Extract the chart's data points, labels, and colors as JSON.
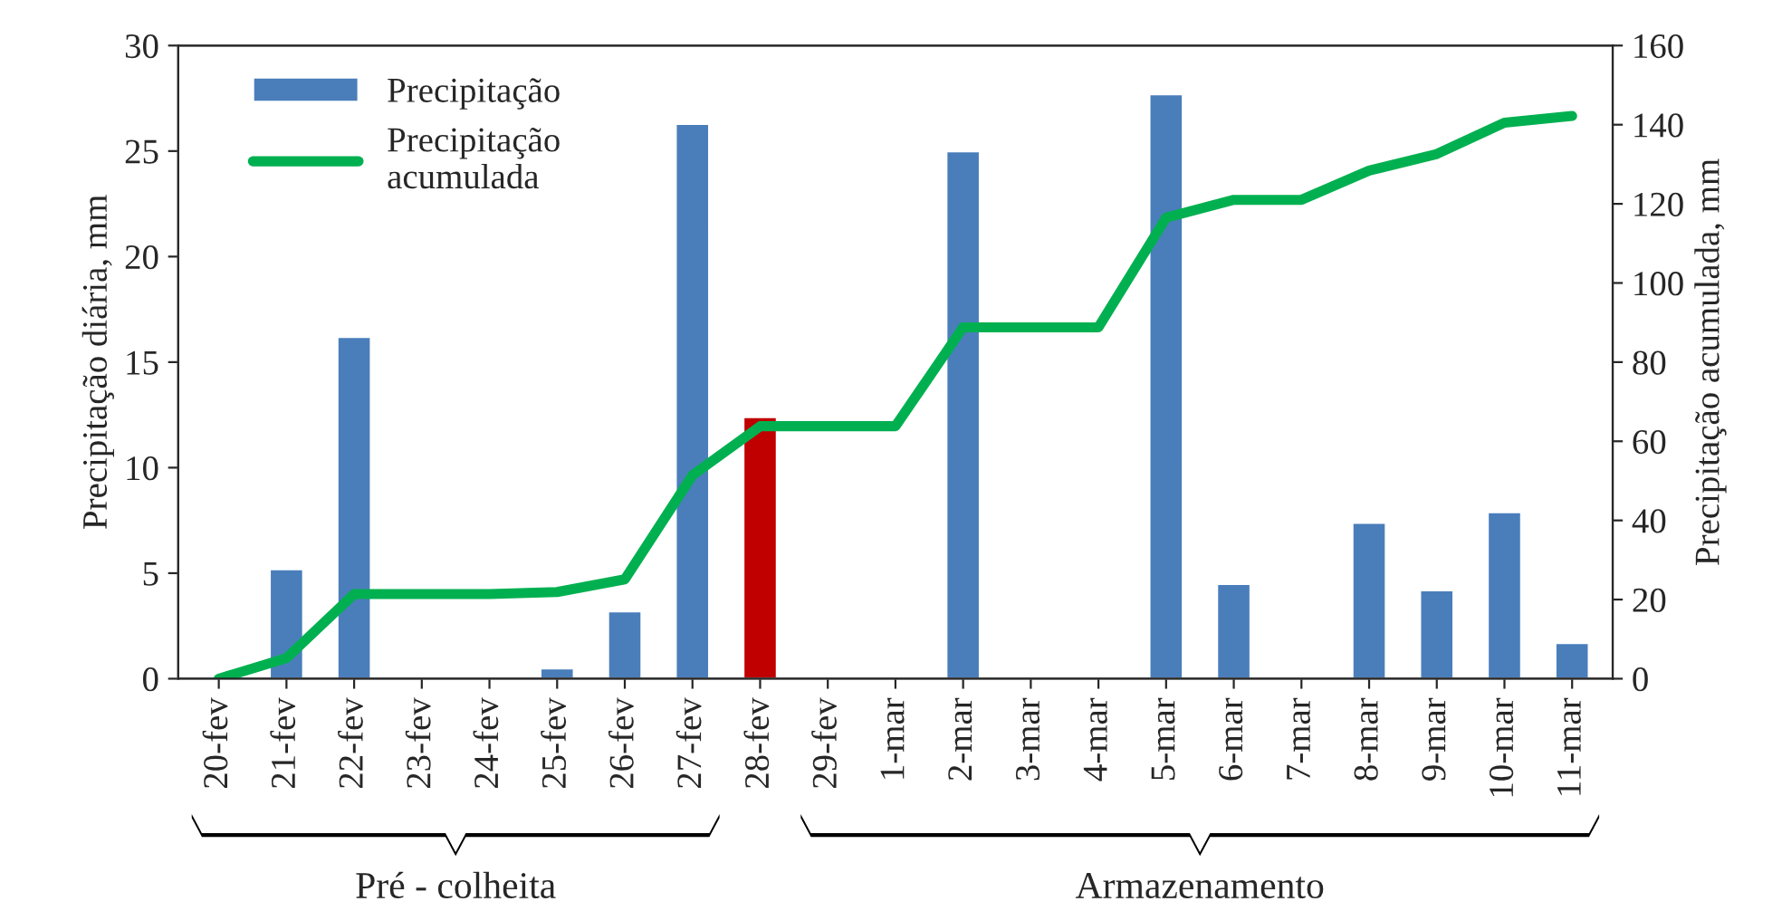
{
  "chart_data": {
    "type": "bar",
    "ylabel": "Precipitação diária, mm",
    "y2label": "Precipitação acumulada, mm",
    "categories": [
      "20-fev",
      "21-fev",
      "22-fev",
      "23-fev",
      "24-fev",
      "25-fev",
      "26-fev",
      "27-fev",
      "28-fev",
      "29-fev",
      "1-mar",
      "2-mar",
      "3-mar",
      "4-mar",
      "5-mar",
      "6-mar",
      "7-mar",
      "8-mar",
      "9-mar",
      "10-mar",
      "11-mar"
    ],
    "series": [
      {
        "name": "Precipitação",
        "color": "#4a7ebb",
        "colors": [
          "#4a7ebb",
          "#4a7ebb",
          "#4a7ebb",
          "#4a7ebb",
          "#4a7ebb",
          "#4a7ebb",
          "#4a7ebb",
          "#4a7ebb",
          "#c00000",
          "#4a7ebb",
          "#4a7ebb",
          "#4a7ebb",
          "#4a7ebb",
          "#4a7ebb",
          "#4a7ebb",
          "#4a7ebb",
          "#4a7ebb",
          "#4a7ebb",
          "#4a7ebb",
          "#4a7ebb",
          "#4a7ebb"
        ],
        "values": [
          0,
          5.2,
          16.2,
          0,
          0,
          0.5,
          3.2,
          26.3,
          12.4,
          0,
          0,
          25,
          0,
          0,
          27.7,
          4.5,
          0,
          7.4,
          4.2,
          7.9,
          1.7
        ]
      },
      {
        "name": "Precipitação acumulada",
        "type": "line",
        "axis": "y2",
        "color": "#00b050",
        "values": [
          0,
          5.2,
          21.4,
          21.4,
          21.4,
          21.9,
          25.1,
          51.4,
          63.8,
          63.8,
          63.8,
          88.8,
          88.8,
          88.8,
          116.5,
          121,
          121,
          128.4,
          132.6,
          140.5,
          142.2
        ]
      }
    ],
    "ylim": [
      0,
      30
    ],
    "yticks": [
      0,
      5,
      10,
      15,
      20,
      25,
      30
    ],
    "y2lim": [
      0,
      160
    ],
    "y2ticks": [
      0,
      20,
      40,
      60,
      80,
      100,
      120,
      140,
      160
    ],
    "annotations": [
      "Pré - colheita",
      "Armazenamento"
    ],
    "legend": "top left",
    "grid": false
  }
}
